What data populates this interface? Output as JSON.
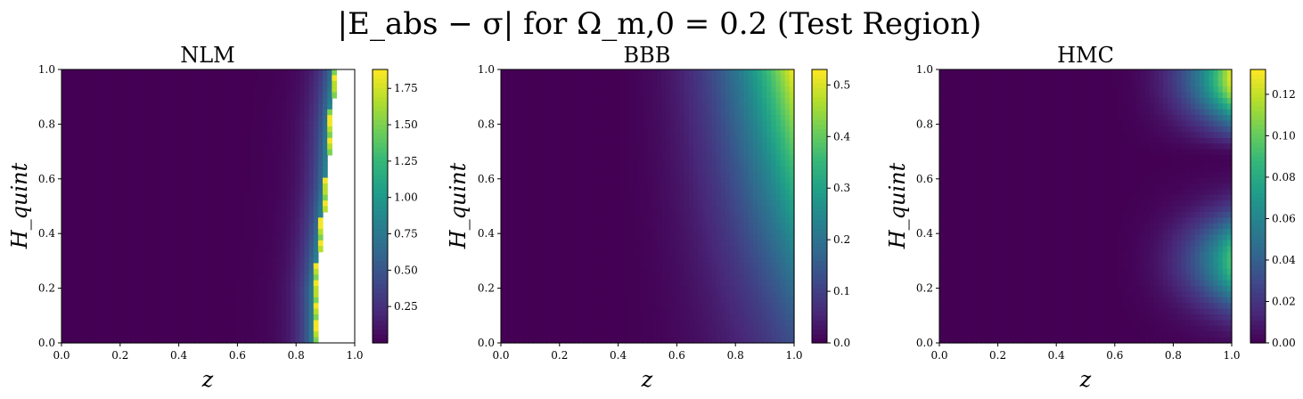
{
  "figure": {
    "suptitle": "|E_abs − σ| for Ω_m,0 = 0.2 (Test Region)"
  },
  "colormap": "viridis",
  "chart_data": [
    {
      "type": "heatmap",
      "title": "NLM",
      "xlabel": "z",
      "ylabel": "H_quint",
      "xlim": [
        0.0,
        1.0
      ],
      "ylim": [
        0.0,
        1.0
      ],
      "xticks": [
        "0.0",
        "0.2",
        "0.4",
        "0.6",
        "0.8",
        "1.0"
      ],
      "yticks": [
        "0.0",
        "0.2",
        "0.4",
        "0.6",
        "0.8",
        "1.0"
      ],
      "colorbar": {
        "min": 0.0,
        "max": 1.88,
        "ticks": [
          "0.25",
          "0.50",
          "0.75",
          "1.00",
          "1.25",
          "1.50",
          "1.75"
        ]
      },
      "description_values": {
        "background": 0.0,
        "max_near_edge": 1.85,
        "valid_edge_z": [
          [
            0.0,
            0.87
          ],
          [
            0.2,
            0.87
          ],
          [
            0.4,
            0.89
          ],
          [
            0.6,
            0.91
          ],
          [
            0.8,
            0.92
          ],
          [
            1.0,
            0.94
          ]
        ]
      }
    },
    {
      "type": "heatmap",
      "title": "BBB",
      "xlabel": "z",
      "ylabel": "H_quint",
      "xlim": [
        0.0,
        1.0
      ],
      "ylim": [
        0.0,
        1.0
      ],
      "xticks": [
        "0.0",
        "0.2",
        "0.4",
        "0.6",
        "0.8",
        "1.0"
      ],
      "yticks": [
        "0.0",
        "0.2",
        "0.4",
        "0.6",
        "0.8",
        "1.0"
      ],
      "colorbar": {
        "min": 0.0,
        "max": 0.53,
        "ticks": [
          "0.0",
          "0.1",
          "0.2",
          "0.3",
          "0.4",
          "0.5"
        ]
      },
      "description_values": {
        "background": 0.0,
        "peak": {
          "z": 1.0,
          "H_quint": 1.0,
          "value": 0.53
        }
      }
    },
    {
      "type": "heatmap",
      "title": "HMC",
      "xlabel": "z",
      "ylabel": "H_quint",
      "xlim": [
        0.0,
        1.0
      ],
      "ylim": [
        0.0,
        1.0
      ],
      "xticks": [
        "0.0",
        "0.2",
        "0.4",
        "0.6",
        "0.8",
        "1.0"
      ],
      "yticks": [
        "0.0",
        "0.2",
        "0.4",
        "0.6",
        "0.8",
        "1.0"
      ],
      "colorbar": {
        "min": 0.0,
        "max": 0.132,
        "ticks": [
          "0.00",
          "0.02",
          "0.04",
          "0.06",
          "0.08",
          "0.10",
          "0.12"
        ]
      },
      "description_values": {
        "background": 0.0,
        "peaks": [
          {
            "z": 1.0,
            "H_quint": 0.97,
            "value": 0.13
          },
          {
            "z": 1.0,
            "H_quint": 0.3,
            "value": 0.095
          }
        ],
        "trough": {
          "H_quint": 0.67
        }
      }
    }
  ]
}
